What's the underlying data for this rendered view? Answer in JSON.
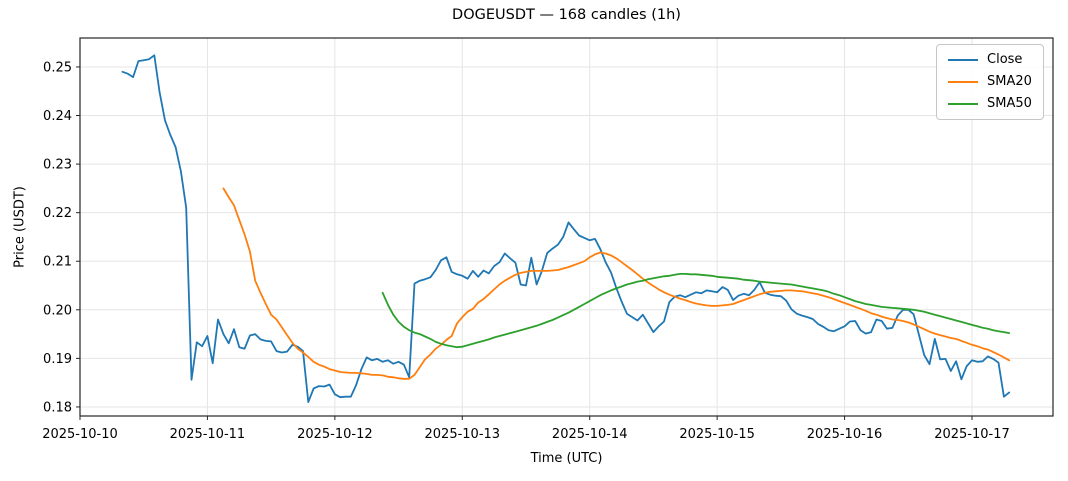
{
  "window": {
    "title": "DOGEUSDT — 168 candles (1h)"
  },
  "chart_data": {
    "type": "line",
    "title": "DOGEUSDT — 168 candles (1h)",
    "xlabel": "Time (UTC)",
    "ylabel": "Price (USDT)",
    "grid": true,
    "legend_position": "upper right",
    "x_tick_labels": [
      "2025-10-10",
      "2025-10-11",
      "2025-10-12",
      "2025-10-13",
      "2025-10-14",
      "2025-10-15",
      "2025-10-16",
      "2025-10-17"
    ],
    "y_ticks": [
      0.18,
      0.19,
      0.2,
      0.21,
      0.22,
      0.23,
      0.24,
      0.25
    ],
    "ylim": [
      0.1781,
      0.256
    ],
    "n_points": 168,
    "interval_hours": 1,
    "start_hour_offset": 8,
    "x_start": "2025-10-10 08:00",
    "x_end": "2025-10-17 07:00",
    "series": [
      {
        "name": "Close",
        "color": "#1f77b4",
        "start_index": 0,
        "values": [
          0.249,
          0.2486,
          0.2479,
          0.2512,
          0.2514,
          0.2516,
          0.2524,
          0.2448,
          0.239,
          0.236,
          0.2335,
          0.2285,
          0.221,
          0.1856,
          0.1933,
          0.1925,
          0.1946,
          0.189,
          0.198,
          0.195,
          0.1931,
          0.196,
          0.1923,
          0.192,
          0.1947,
          0.195,
          0.1939,
          0.1936,
          0.1935,
          0.1915,
          0.1912,
          0.1914,
          0.1928,
          0.1924,
          0.1915,
          0.181,
          0.1838,
          0.1843,
          0.1842,
          0.1846,
          0.1826,
          0.182,
          0.1821,
          0.1821,
          0.1845,
          0.1878,
          0.1902,
          0.1896,
          0.1899,
          0.1893,
          0.1896,
          0.1889,
          0.1893,
          0.1887,
          0.1861,
          0.2054,
          0.206,
          0.2063,
          0.2067,
          0.2082,
          0.2102,
          0.2108,
          0.2078,
          0.2073,
          0.207,
          0.2064,
          0.208,
          0.2068,
          0.2081,
          0.2075,
          0.209,
          0.2098,
          0.2116,
          0.2106,
          0.2097,
          0.2052,
          0.205,
          0.2107,
          0.2052,
          0.208,
          0.2117,
          0.2126,
          0.2134,
          0.215,
          0.218,
          0.2166,
          0.2153,
          0.2148,
          0.2143,
          0.2146,
          0.2125,
          0.2098,
          0.2077,
          0.2045,
          0.2017,
          0.1992,
          0.1985,
          0.1978,
          0.199,
          0.1972,
          0.1954,
          0.1966,
          0.1976,
          0.2016,
          0.2027,
          0.203,
          0.2026,
          0.2031,
          0.2036,
          0.2034,
          0.204,
          0.2038,
          0.2036,
          0.2047,
          0.2041,
          0.202,
          0.2029,
          0.2033,
          0.203,
          0.2041,
          0.2057,
          0.2035,
          0.2031,
          0.2029,
          0.2028,
          0.2019,
          0.2001,
          0.1992,
          0.1988,
          0.1985,
          0.1981,
          0.1971,
          0.1965,
          0.1958,
          0.1956,
          0.1961,
          0.1966,
          0.1976,
          0.1977,
          0.1958,
          0.1951,
          0.1954,
          0.198,
          0.1977,
          0.1961,
          0.1963,
          0.1988,
          0.2,
          0.2,
          0.1991,
          0.1949,
          0.1907,
          0.1888,
          0.194,
          0.1898,
          0.1899,
          0.1874,
          0.1894,
          0.1857,
          0.1884,
          0.1896,
          0.1893,
          0.1894,
          0.1904,
          0.1899,
          0.1891,
          0.1821,
          0.183
        ]
      },
      {
        "name": "SMA20",
        "color": "#ff7f0e",
        "start_index": 19,
        "values": [
          0.225,
          0.2232,
          0.2215,
          0.2185,
          0.2155,
          0.212,
          0.206,
          0.2035,
          0.2012,
          0.199,
          0.198,
          0.1964,
          0.1948,
          0.1932,
          0.192,
          0.1912,
          0.1903,
          0.1893,
          0.1887,
          0.1883,
          0.1878,
          0.1875,
          0.1872,
          0.1871,
          0.187,
          0.187,
          0.1869,
          0.1868,
          0.1866,
          0.1866,
          0.1865,
          0.1862,
          0.1861,
          0.1859,
          0.1858,
          0.1858,
          0.1866,
          0.1882,
          0.1898,
          0.1908,
          0.192,
          0.1928,
          0.1938,
          0.1946,
          0.1972,
          0.1985,
          0.1996,
          0.2002,
          0.2015,
          0.2022,
          0.2032,
          0.2042,
          0.2052,
          0.206,
          0.2066,
          0.2072,
          0.2076,
          0.2078,
          0.208,
          0.208,
          0.208,
          0.208,
          0.2081,
          0.2082,
          0.2085,
          0.2088,
          0.2092,
          0.2096,
          0.21,
          0.2108,
          0.2114,
          0.2118,
          0.2116,
          0.2112,
          0.2106,
          0.2098,
          0.209,
          0.2082,
          0.2073,
          0.2064,
          0.2056,
          0.2049,
          0.2042,
          0.2036,
          0.2031,
          0.2027,
          0.2023,
          0.202,
          0.2016,
          0.2013,
          0.2011,
          0.2009,
          0.2008,
          0.2008,
          0.2009,
          0.201,
          0.2012,
          0.2016,
          0.202,
          0.2024,
          0.2028,
          0.2032,
          0.2035,
          0.2037,
          0.2038,
          0.2039,
          0.204,
          0.204,
          0.2039,
          0.2038,
          0.2036,
          0.2034,
          0.2032,
          0.2029,
          0.2026,
          0.2022,
          0.2018,
          0.2014,
          0.201,
          0.2006,
          0.2002,
          0.1998,
          0.1993,
          0.199,
          0.1986,
          0.1983,
          0.198,
          0.1979,
          0.1977,
          0.1974,
          0.197,
          0.1965,
          0.196,
          0.1955,
          0.1951,
          0.1948,
          0.1945,
          0.1942,
          0.194,
          0.1936,
          0.1932,
          0.1928,
          0.1925,
          0.1921,
          0.1918,
          0.1913,
          0.1908,
          0.1902,
          0.1896
        ]
      },
      {
        "name": "SMA50",
        "color": "#2ca02c",
        "start_index": 49,
        "values": [
          0.2035,
          0.201,
          0.199,
          0.1975,
          0.1965,
          0.1958,
          0.1953,
          0.195,
          0.1945,
          0.194,
          0.1934,
          0.193,
          0.1927,
          0.1925,
          0.1923,
          0.1924,
          0.1927,
          0.193,
          0.1933,
          0.1936,
          0.1939,
          0.1943,
          0.1946,
          0.1949,
          0.1952,
          0.1955,
          0.1958,
          0.1961,
          0.1964,
          0.1967,
          0.1971,
          0.1975,
          0.1979,
          0.1984,
          0.1989,
          0.1994,
          0.2,
          0.2006,
          0.2012,
          0.2018,
          0.2024,
          0.203,
          0.2035,
          0.204,
          0.2044,
          0.2048,
          0.2052,
          0.2055,
          0.2058,
          0.206,
          0.2063,
          0.2065,
          0.2067,
          0.2069,
          0.207,
          0.2072,
          0.2074,
          0.2074,
          0.2073,
          0.2073,
          0.2072,
          0.2071,
          0.207,
          0.2068,
          0.2067,
          0.2066,
          0.2065,
          0.2064,
          0.2062,
          0.2061,
          0.206,
          0.2058,
          0.2057,
          0.2056,
          0.2055,
          0.2054,
          0.2053,
          0.2052,
          0.205,
          0.2048,
          0.2046,
          0.2044,
          0.2042,
          0.204,
          0.2037,
          0.2033,
          0.203,
          0.2026,
          0.2022,
          0.2018,
          0.2015,
          0.2012,
          0.201,
          0.2008,
          0.2006,
          0.2005,
          0.2004,
          0.2003,
          0.2002,
          0.2001,
          0.2,
          0.1998,
          0.1996,
          0.1993,
          0.199,
          0.1987,
          0.1984,
          0.1981,
          0.1978,
          0.1975,
          0.1972,
          0.1969,
          0.1966,
          0.1963,
          0.1961,
          0.1958,
          0.1956,
          0.1954,
          0.1952
        ]
      }
    ]
  }
}
